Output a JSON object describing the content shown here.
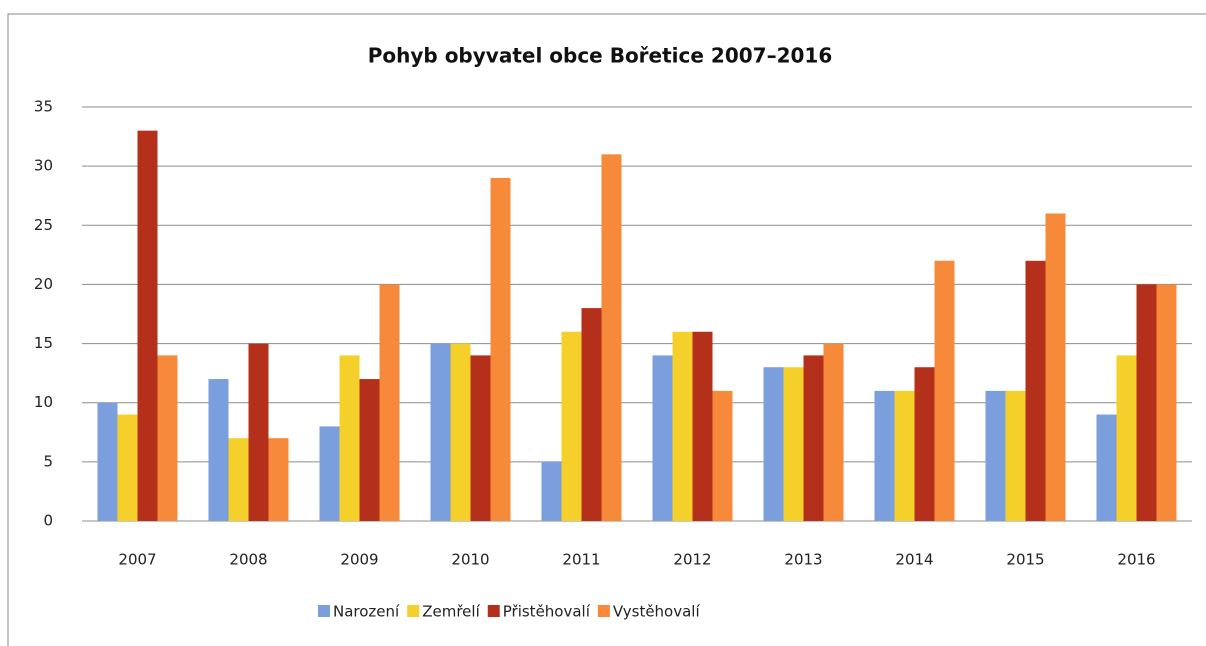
{
  "chart_data": {
    "type": "bar",
    "title": "Pohyb obyvatel obce Bořetice 2007–2016",
    "categories": [
      "2007",
      "2008",
      "2009",
      "2010",
      "2011",
      "2012",
      "2013",
      "2014",
      "2015",
      "2016"
    ],
    "series": [
      {
        "name": "Narození",
        "color": "#7b9fdc",
        "values": [
          10,
          12,
          8,
          15,
          5,
          14,
          13,
          11,
          11,
          9
        ]
      },
      {
        "name": "Zemřelí",
        "color": "#f5d02b",
        "values": [
          9,
          7,
          14,
          15,
          16,
          16,
          13,
          11,
          11,
          14
        ]
      },
      {
        "name": "Přistěhovalí",
        "color": "#b5301a",
        "values": [
          33,
          15,
          12,
          14,
          18,
          16,
          14,
          13,
          22,
          20
        ]
      },
      {
        "name": "Vystěhovalí",
        "color": "#f7893a",
        "values": [
          14,
          7,
          20,
          29,
          31,
          11,
          15,
          22,
          26,
          20
        ]
      }
    ],
    "ylim": [
      0,
      35
    ],
    "yticks": [
      0,
      5,
      10,
      15,
      20,
      25,
      30,
      35
    ],
    "grid": true,
    "legend": "bottom"
  }
}
